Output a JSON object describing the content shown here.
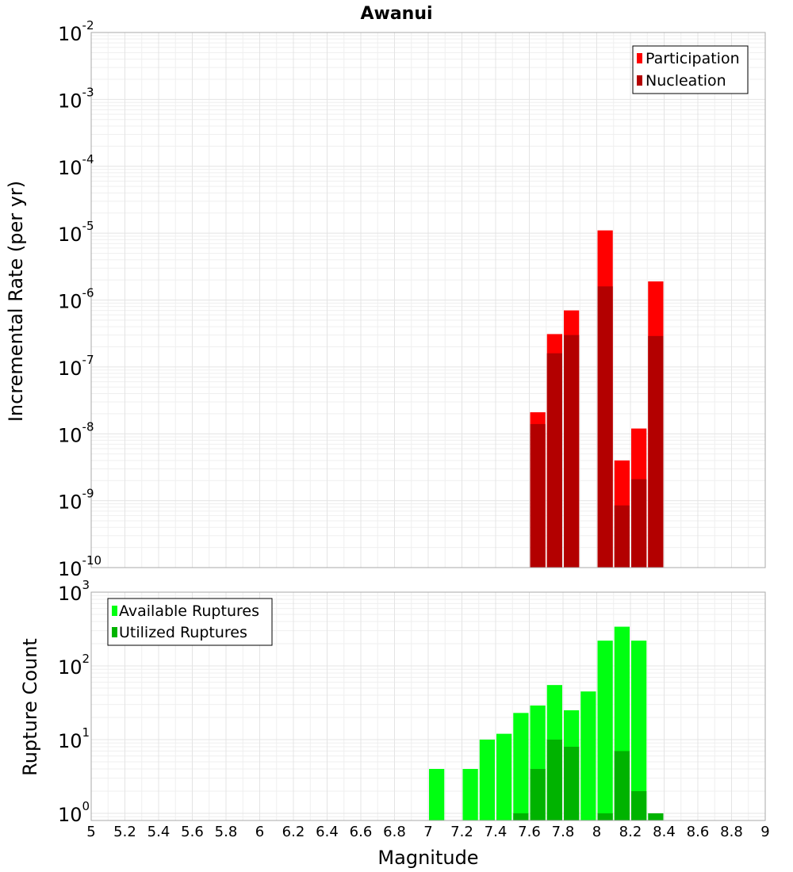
{
  "chart_data": [
    {
      "type": "bar",
      "title": "Awanui",
      "xlabel": "",
      "ylabel": "Incremental Rate (per yr)",
      "yscale": "log",
      "ylim": [
        1e-10,
        0.01
      ],
      "xlim": [
        5,
        9
      ],
      "ytick_labels": [
        {
          "base": "10",
          "exp": "-2"
        },
        {
          "base": "10",
          "exp": "-3"
        },
        {
          "base": "10",
          "exp": "-4"
        },
        {
          "base": "10",
          "exp": "-5"
        },
        {
          "base": "10",
          "exp": "-6"
        },
        {
          "base": "10",
          "exp": "-7"
        },
        {
          "base": "10",
          "exp": "-8"
        },
        {
          "base": "10",
          "exp": "-9"
        },
        {
          "base": "10",
          "exp": "-10"
        }
      ],
      "legend_position": "top-right",
      "x": [
        7.65,
        7.75,
        7.85,
        7.95,
        8.05,
        8.15,
        8.25,
        8.35
      ],
      "series": [
        {
          "name": "Participation",
          "color": "#ff0000",
          "values": [
            2.1e-08,
            3.1e-07,
            7e-07,
            null,
            1.1e-05,
            4e-09,
            1.2e-08,
            1.9e-06
          ]
        },
        {
          "name": "Nucleation",
          "color": "#b30000",
          "values": [
            1.4e-08,
            1.6e-07,
            3e-07,
            null,
            1.6e-06,
            8.5e-10,
            2.1e-09,
            2.9e-07
          ]
        }
      ]
    },
    {
      "type": "bar",
      "title": "",
      "xlabel": "Magnitude",
      "ylabel": "Rupture Count",
      "yscale": "log",
      "ylim": [
        0.8,
        1000
      ],
      "xlim": [
        5,
        9
      ],
      "ytick_labels": [
        {
          "base": "10",
          "exp": "3"
        },
        {
          "base": "10",
          "exp": "2"
        },
        {
          "base": "10",
          "exp": "1"
        },
        {
          "base": "10",
          "exp": "0"
        }
      ],
      "xtick_labels": [
        "5",
        "5.2",
        "5.4",
        "5.6",
        "5.8",
        "6",
        "6.2",
        "6.4",
        "6.6",
        "6.8",
        "7",
        "7.2",
        "7.4",
        "7.6",
        "7.8",
        "8",
        "8.2",
        "8.4",
        "8.6",
        "8.8",
        "9"
      ],
      "legend_position": "top-left",
      "x": [
        7.05,
        7.15,
        7.25,
        7.35,
        7.45,
        7.55,
        7.65,
        7.75,
        7.85,
        7.95,
        8.05,
        8.15,
        8.25,
        8.35
      ],
      "series": [
        {
          "name": "Available Ruptures",
          "color": "#00ff11",
          "values": [
            4,
            null,
            4,
            10,
            12,
            23,
            29,
            55,
            25,
            45,
            220,
            340,
            220,
            null
          ]
        },
        {
          "name": "Utilized Ruptures",
          "color": "#00b300",
          "values": [
            null,
            null,
            null,
            null,
            null,
            1,
            4,
            10,
            8,
            null,
            1,
            7,
            2,
            1
          ]
        }
      ]
    }
  ]
}
